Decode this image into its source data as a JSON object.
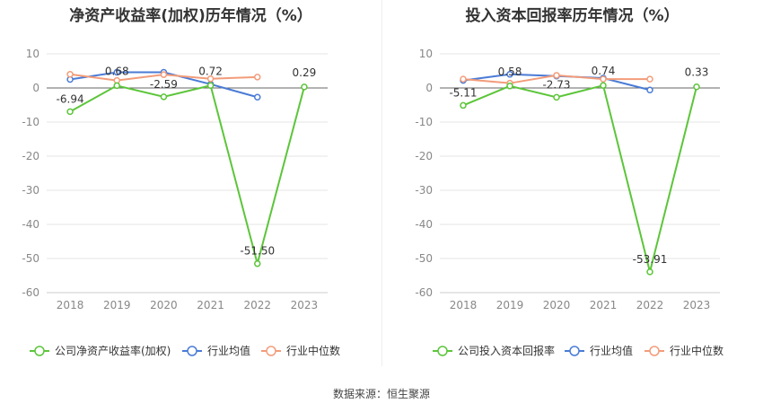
{
  "source": "数据来源：恒生聚源",
  "chart_data": [
    {
      "type": "line",
      "title": "净资产收益率(加权)历年情况（%）",
      "categories": [
        "2018",
        "2019",
        "2020",
        "2021",
        "2022",
        "2023"
      ],
      "ylim": [
        -60,
        10
      ],
      "yticks": [
        10,
        0,
        -10,
        -20,
        -30,
        -40,
        -50,
        -60
      ],
      "grid": true,
      "legend_position": "bottom",
      "series": [
        {
          "name": "公司净资产收益率(加权)",
          "color": "#5cc53a",
          "values": [
            -6.94,
            0.68,
            -2.59,
            0.72,
            -51.5,
            0.29
          ],
          "labels": [
            "-6.94",
            "0.68",
            "-2.59",
            "0.72",
            "-51.50",
            "0.29"
          ]
        },
        {
          "name": "行业均值",
          "color": "#4a7bd6",
          "values": [
            2.5,
            4.6,
            4.6,
            1.1,
            -2.7,
            null
          ]
        },
        {
          "name": "行业中位数",
          "color": "#f29c7a",
          "values": [
            4.0,
            2.2,
            3.9,
            2.7,
            3.2,
            null
          ]
        }
      ]
    },
    {
      "type": "line",
      "title": "投入资本回报率历年情况（%）",
      "categories": [
        "2018",
        "2019",
        "2020",
        "2021",
        "2022",
        "2023"
      ],
      "ylim": [
        -60,
        10
      ],
      "yticks": [
        10,
        0,
        -10,
        -20,
        -30,
        -40,
        -50,
        -60
      ],
      "grid": true,
      "legend_position": "bottom",
      "series": [
        {
          "name": "公司投入资本回报率",
          "color": "#5cc53a",
          "values": [
            -5.11,
            0.58,
            -2.73,
            0.74,
            -53.91,
            0.33
          ],
          "labels": [
            "-5.11",
            "0.58",
            "-2.73",
            "0.74",
            "-53.91",
            "0.33"
          ]
        },
        {
          "name": "行业均值",
          "color": "#4a7bd6",
          "values": [
            2.2,
            4.0,
            3.5,
            2.9,
            -0.6,
            null
          ]
        },
        {
          "name": "行业中位数",
          "color": "#f29c7a",
          "values": [
            2.6,
            1.4,
            3.7,
            2.6,
            2.6,
            null
          ]
        }
      ]
    }
  ]
}
